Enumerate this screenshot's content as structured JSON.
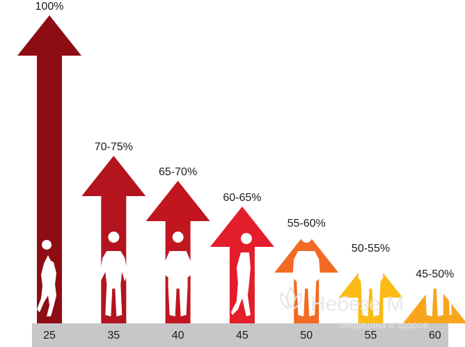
{
  "chart_data": {
    "type": "bar",
    "categories": [
      "25",
      "35",
      "40",
      "45",
      "50",
      "55",
      "60"
    ],
    "values": [
      100,
      72.5,
      67.5,
      62.5,
      57.5,
      52.5,
      47.5
    ],
    "value_labels": [
      "100%",
      "70-75%",
      "65-70%",
      "60-65%",
      "55-60%",
      "50-55%",
      "45-50%"
    ],
    "colors": [
      "#8e0c13",
      "#b3141e",
      "#c1161f",
      "#e31d2a",
      "#f26a23",
      "#fbbb14",
      "#f8a51c"
    ],
    "figures": [
      "basketball-player",
      "standing-man",
      "man-hands-on-hips",
      "man-hunched",
      "man-hands-in-pockets",
      "elderly-man",
      "elderly-man-with-cane"
    ],
    "ylim": [
      0,
      100
    ],
    "title": "",
    "xlabel": "",
    "ylabel": "",
    "grid": false,
    "axis_band_color": "#c7c7c9"
  },
  "watermark": {
    "line1": "Небезе М",
    "line2": "Медицина и здоров"
  }
}
